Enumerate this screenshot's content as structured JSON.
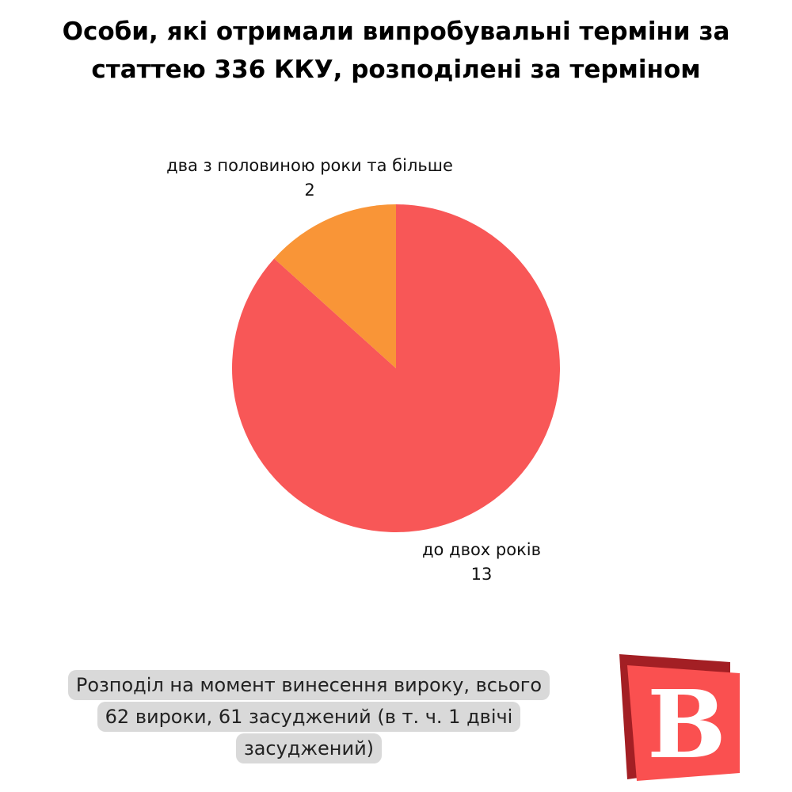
{
  "title": {
    "line1": "Особи, які отримали випробувальні терміни за",
    "line2": "статтею 336 ККУ, розподілені за терміном"
  },
  "chart_data": {
    "type": "pie",
    "title": "Особи, які отримали випробувальні терміни за статтею 336 ККУ, розподілені за терміном",
    "slices": [
      {
        "label": "до двох років",
        "value": 13,
        "color": "#f85757"
      },
      {
        "label": "два з половиною роки та більше",
        "value": 2,
        "color": "#f99537"
      }
    ],
    "start_angle_deg": 0,
    "direction": "clockwise",
    "legend": "none",
    "data_labels": "outside"
  },
  "note": {
    "line1": "Розподіл на момент винесення вироку, всього",
    "line2": "62 вироки, 61 засуджений (в т. ч. 1 двічі",
    "line3": "засуджений)"
  },
  "logo": {
    "letter": "B",
    "colors": {
      "front": "#fa5050",
      "back": "#a31f24",
      "letter": "#ffffff"
    }
  }
}
